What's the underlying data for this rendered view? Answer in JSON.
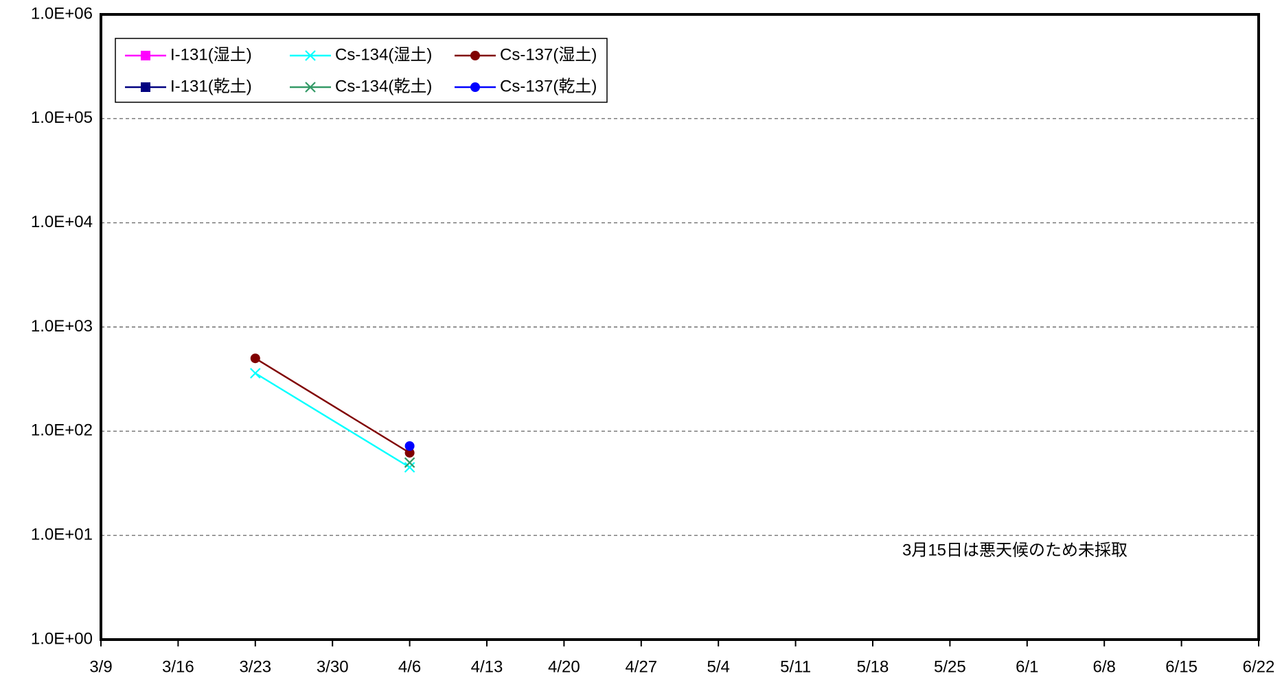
{
  "chart_data": {
    "type": "line",
    "x": [
      "3/23",
      "4/6"
    ],
    "series": [
      {
        "name": "I-131(湿土)",
        "color": "#ff00ff",
        "marker": "square",
        "values": [
          null,
          null
        ]
      },
      {
        "name": "I-131(乾土)",
        "color": "#000080",
        "marker": "square",
        "values": [
          null,
          null
        ]
      },
      {
        "name": "Cs-134(湿土)",
        "color": "#00ffff",
        "marker": "x",
        "values": [
          360,
          45
        ]
      },
      {
        "name": "Cs-134(乾土)",
        "color": "#339966",
        "marker": "x",
        "values": [
          null,
          50
        ]
      },
      {
        "name": "Cs-137(湿土)",
        "color": "#800000",
        "marker": "circle",
        "values": [
          500,
          62
        ]
      },
      {
        "name": "Cs-137(乾土)",
        "color": "#0000ff",
        "marker": "circle",
        "values": [
          null,
          72
        ]
      }
    ],
    "xlim": [
      "3/9",
      "6/22"
    ],
    "xticks": [
      "3/9",
      "3/16",
      "3/23",
      "3/30",
      "4/6",
      "4/13",
      "4/20",
      "4/27",
      "5/4",
      "5/11",
      "5/18",
      "5/25",
      "6/1",
      "6/8",
      "6/15",
      "6/22"
    ],
    "ylim": [
      1,
      1000000
    ],
    "yticks": [
      {
        "value": 1,
        "label": "1.0E+00"
      },
      {
        "value": 10,
        "label": "1.0E+01"
      },
      {
        "value": 100,
        "label": "1.0E+02"
      },
      {
        "value": 1000,
        "label": "1.0E+03"
      },
      {
        "value": 10000,
        "label": "1.0E+04"
      },
      {
        "value": 100000,
        "label": "1.0E+05"
      },
      {
        "value": 1000000,
        "label": "1.0E+06"
      }
    ],
    "log_y": true,
    "grid": true,
    "legend": "upper left",
    "annotation": "3月15日は悪天候のため未採取"
  }
}
